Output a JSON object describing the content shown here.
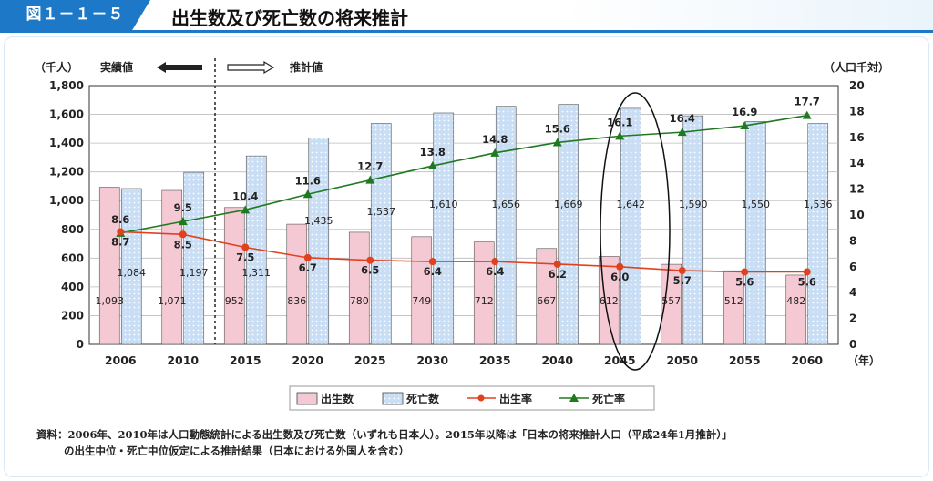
{
  "header": {
    "figure_label": "図１－１－５",
    "title": "出生数及び死亡数の将来推計"
  },
  "chart_data": {
    "type": "bar",
    "categories": [
      "2006",
      "2010",
      "2015",
      "2020",
      "2025",
      "2030",
      "2035",
      "2040",
      "2045",
      "2050",
      "2055",
      "2060"
    ],
    "series": [
      {
        "name": "出生数",
        "kind": "bar",
        "axis": "left",
        "values": [
          1093,
          1071,
          952,
          836,
          780,
          749,
          712,
          667,
          612,
          557,
          512,
          482
        ],
        "labels": [
          "1,093",
          "1,071",
          "952",
          "836",
          "780",
          "749",
          "712",
          "667",
          "612",
          "557",
          "512",
          "482"
        ]
      },
      {
        "name": "死亡数",
        "kind": "bar",
        "axis": "left",
        "values": [
          1084,
          1197,
          1311,
          1435,
          1537,
          1610,
          1656,
          1669,
          1642,
          1590,
          1550,
          1536
        ],
        "labels": [
          "1,084",
          "1,197",
          "1,311",
          "1,435",
          "1,537",
          "1,610",
          "1,656",
          "1,669",
          "1,642",
          "1,590",
          "1,550",
          "1,536"
        ]
      },
      {
        "name": "出生率",
        "kind": "line",
        "axis": "right",
        "values": [
          8.7,
          8.5,
          7.5,
          6.7,
          6.5,
          6.4,
          6.4,
          6.2,
          6.0,
          5.7,
          5.6,
          5.6
        ],
        "labels": [
          "8.7",
          "8.5",
          "7.5",
          "6.7",
          "6.5",
          "6.4",
          "6.4",
          "6.2",
          "6.0",
          "5.7",
          "5.6",
          "5.6"
        ]
      },
      {
        "name": "死亡率",
        "kind": "line",
        "axis": "right",
        "values": [
          8.6,
          9.5,
          10.4,
          11.6,
          12.7,
          13.8,
          14.8,
          15.6,
          16.1,
          16.4,
          16.9,
          17.7
        ],
        "labels": [
          "8.6",
          "9.5",
          "10.4",
          "11.6",
          "12.7",
          "13.8",
          "14.8",
          "15.6",
          "16.1",
          "16.4",
          "16.9",
          "17.7"
        ]
      }
    ],
    "y_left": {
      "unit_label": "（千人）",
      "ylim": [
        0,
        1800
      ],
      "ticks": [
        "0",
        "200",
        "400",
        "600",
        "800",
        "1,000",
        "1,200",
        "1,400",
        "1,600",
        "1,800"
      ]
    },
    "y_right": {
      "unit_label": "（人口千対）",
      "ylim": [
        0,
        20
      ],
      "ticks": [
        "0",
        "2",
        "4",
        "6",
        "8",
        "10",
        "12",
        "14",
        "16",
        "18",
        "20"
      ]
    },
    "x_unit": "（年）",
    "annotations": {
      "actual": "実績値",
      "projected": "推計値",
      "highlight_year": "2045"
    },
    "legend": {
      "position": "bottom"
    },
    "colors": {
      "birth_bar": "#f5c9d3",
      "death_bar": "#c9def4",
      "birth_line": "#e0421e",
      "death_line": "#1f7a1f"
    }
  },
  "source": {
    "line1": "資料：2006年、2010年は人口動態統計による出生数及び死亡数（いずれも日本人）。2015年以降は「日本の将来推計人口（平成24年1月推計）」",
    "line2": "の出生中位・死亡中位仮定による推計結果（日本における外国人を含む）"
  }
}
